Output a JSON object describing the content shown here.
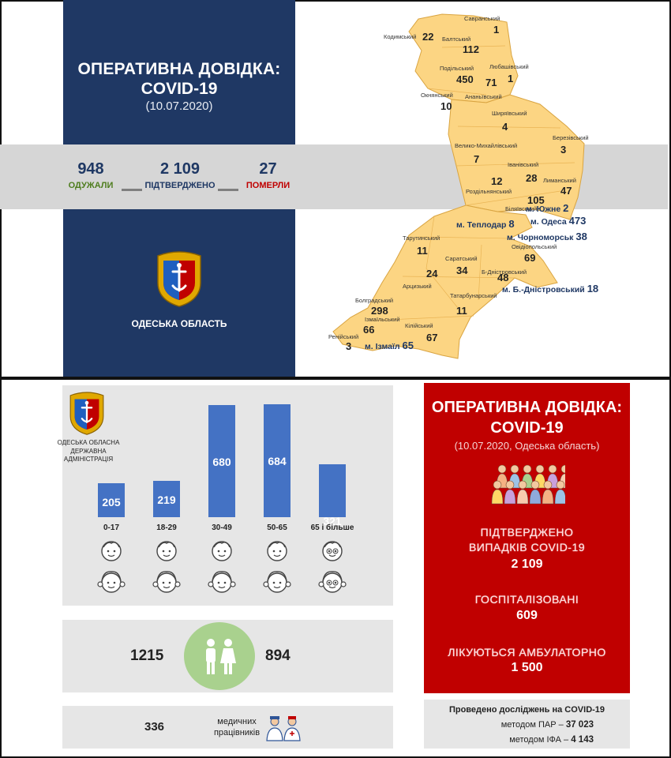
{
  "top": {
    "title_line1": "ОПЕРАТИВНА ДОВІДКА:",
    "title_line2": "COVID-19",
    "date": "(10.07.2020)",
    "stats": {
      "recovered_value": "948",
      "recovered_label": "ОДУЖАЛИ",
      "confirmed_value": "2 109",
      "confirmed_label": "ПІДТВЕРДЖЕНО",
      "dead_value": "27",
      "dead_label": "ПОМЕРЛИ"
    },
    "region_name": "ОДЕСЬКА ОБЛАСТЬ"
  },
  "map": {
    "districts": [
      {
        "name": "Кодимський",
        "value": "22"
      },
      {
        "name": "Савранський",
        "value": "1"
      },
      {
        "name": "Балтський",
        "value": "112"
      },
      {
        "name": "Подільський",
        "value": "450"
      },
      {
        "name": "Любашівський",
        "value": "1"
      },
      {
        "name": "Окнянський",
        "value": "10"
      },
      {
        "name": "Ананьївський",
        "value": "71"
      },
      {
        "name": "Ширяївський",
        "value": "4"
      },
      {
        "name": "Березівський",
        "value": "3"
      },
      {
        "name": "Велико-Михайлівський",
        "value": "7"
      },
      {
        "name": "Іванівський",
        "value": "28"
      },
      {
        "name": "Лиманський",
        "value": "47"
      },
      {
        "name": "Роздільнянський",
        "value": "12"
      },
      {
        "name": "Біляївський",
        "value": "105"
      },
      {
        "name": "Тарутинський",
        "value": "11"
      },
      {
        "name": "Овідіопольський",
        "value": "69"
      },
      {
        "name": "Саратський",
        "value": "34"
      },
      {
        "name": "Арцизький",
        "value": "24"
      },
      {
        "name": "Б-Дністровський",
        "value": "48"
      },
      {
        "name": "Татарбунарський",
        "value": "11"
      },
      {
        "name": "Болградський",
        "value": "298"
      },
      {
        "name": "Ізмаїльський",
        "value": "66"
      },
      {
        "name": "Кілійський",
        "value": "67"
      },
      {
        "name": "Ренійський",
        "value": "3"
      }
    ],
    "cities": [
      {
        "name": "м. Южне",
        "value": "2"
      },
      {
        "name": "м. Теплодар",
        "value": "8"
      },
      {
        "name": "м. Одеса",
        "value": "473"
      },
      {
        "name": "м. Чорноморськ",
        "value": "38"
      },
      {
        "name": "м. Б.-Дністровський",
        "value": "18"
      },
      {
        "name": "м. Ізмаїл",
        "value": "65"
      }
    ]
  },
  "ages": {
    "org_line1": "ОДЕСЬКА ОБЛАСНА",
    "org_line2": "ДЕРЖАВНА",
    "org_line3": "АДМІНІСТРАЦІЯ",
    "groups": [
      {
        "label": "0-17",
        "value": "205"
      },
      {
        "label": "18-29",
        "value": "219"
      },
      {
        "label": "30-49",
        "value": "680"
      },
      {
        "label": "50-65",
        "value": "684"
      },
      {
        "label": "65 і більше",
        "value": "321"
      }
    ]
  },
  "chart_data": {
    "type": "bar",
    "categories": [
      "0-17",
      "18-29",
      "30-49",
      "50-65",
      "65 і більше"
    ],
    "values": [
      205,
      219,
      680,
      684,
      321
    ],
    "title": "",
    "xlabel": "",
    "ylabel": ""
  },
  "gender": {
    "male": "1215",
    "female": "894"
  },
  "medics": {
    "count": "336",
    "label_line1": "медичних",
    "label_line2": "працівників"
  },
  "summary": {
    "title_line1": "ОПЕРАТИВНА ДОВІДКА:",
    "title_line2": "COVID-19",
    "date": "(10.07.2020, Одеська область)",
    "confirmed_line1": "ПІДТВЕРДЖЕНО",
    "confirmed_line2": "ВИПАДКІВ COVID-19",
    "confirmed_value": "2 109",
    "hospitalized_label": "ГОСПІТАЛІЗОВАНІ",
    "hospitalized_value": "609",
    "outpatient_label": "ЛІКУЮТЬСЯ АМБУЛАТОРНО",
    "outpatient_value": "1 500"
  },
  "tests": {
    "title": "Проведено досліджень на COVID-19",
    "pcr_label": "методом ПАР –",
    "pcr_value": "37 023",
    "ifa_label": "методом ІФА –",
    "ifa_value": "4 143"
  },
  "colors": {
    "navy": "#1f3864",
    "map_fill": "#fcd583",
    "bar": "#4472c4",
    "red_panel": "#c00000",
    "green_circle": "#a9d18e",
    "recovered": "#4e7d1e",
    "dead": "#c00000"
  }
}
